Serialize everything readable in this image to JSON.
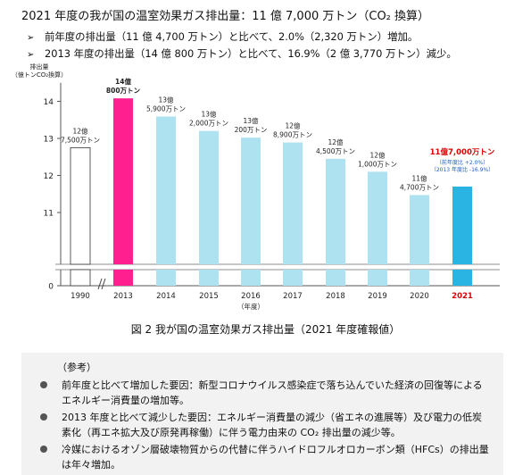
{
  "header": {
    "title": "2021 年度の我が国の温室効果ガス排出量：11 億 7,000 万トン（CO₂ 換算）",
    "bullets": [
      "前年度の排出量（11 億 4,700 万トン）と比べて、2.0%（2,320 万トン）増加。",
      "2013 年度の排出量（14 億 800 万トン）と比べて、16.9%（2 億 3,770 万トン）減少。"
    ],
    "bullet_marker": "➢"
  },
  "chart_data": {
    "type": "bar",
    "ylabel": "排出量\n（億トンCO₂換算）",
    "xlabel": "（年度）",
    "ylim": [
      0,
      14.5
    ],
    "yticks": [
      0,
      11,
      12,
      13,
      14
    ],
    "axis_break": true,
    "categories": [
      "1990",
      "2013",
      "2014",
      "2015",
      "2016",
      "2017",
      "2018",
      "2019",
      "2020",
      "2021"
    ],
    "values": [
      12.75,
      14.08,
      13.59,
      13.2,
      13.02,
      12.89,
      12.45,
      12.1,
      11.47,
      11.7
    ],
    "value_labels": [
      [
        "12億",
        "7,500万トン"
      ],
      [
        "14億",
        "800万トン"
      ],
      [
        "13億",
        "5,900万トン"
      ],
      [
        "13億",
        "2,000万トン"
      ],
      [
        "13億",
        "200万トン"
      ],
      [
        "12億",
        "8,900万トン"
      ],
      [
        "12億",
        "4,500万トン"
      ],
      [
        "12億",
        "1,000万トン"
      ],
      [
        "11億",
        "4,700万トン"
      ],
      [
        "11億7,000万トン"
      ]
    ],
    "annotation_2021": [
      "〔前年度比 +2.0%〕",
      "〔2013 年度比 -16.9%〕"
    ],
    "colors": {
      "baseline": "#ffffff",
      "highlight": "#ff1f8e",
      "normal": "#aee2f0",
      "latest": "#2ab4e3",
      "latest_text": "#e00000",
      "annotation_text": "#2060c0",
      "axis": "#555555"
    }
  },
  "caption": "図 2 我が国の温室効果ガス排出量（2021 年度確報値）",
  "reference": {
    "title": "（参考）",
    "items": [
      "前年度と比べて増加した要因：新型コロナウイルス感染症で落ち込んでいた経済の回復等によるエネルギー消費量の増加等。",
      "2013 年度と比べて減少した要因：エネルギー消費量の減少（省エネの進展等）及び電力の低炭素化（再エネ拡大及び原発再稼働）に伴う電力由来の CO₂ 排出量の減少等。",
      "冷媒におけるオゾン層破壊物質からの代替に伴うハイドロフルオロカーボン類（HFCs）の排出量は年々増加。"
    ]
  }
}
